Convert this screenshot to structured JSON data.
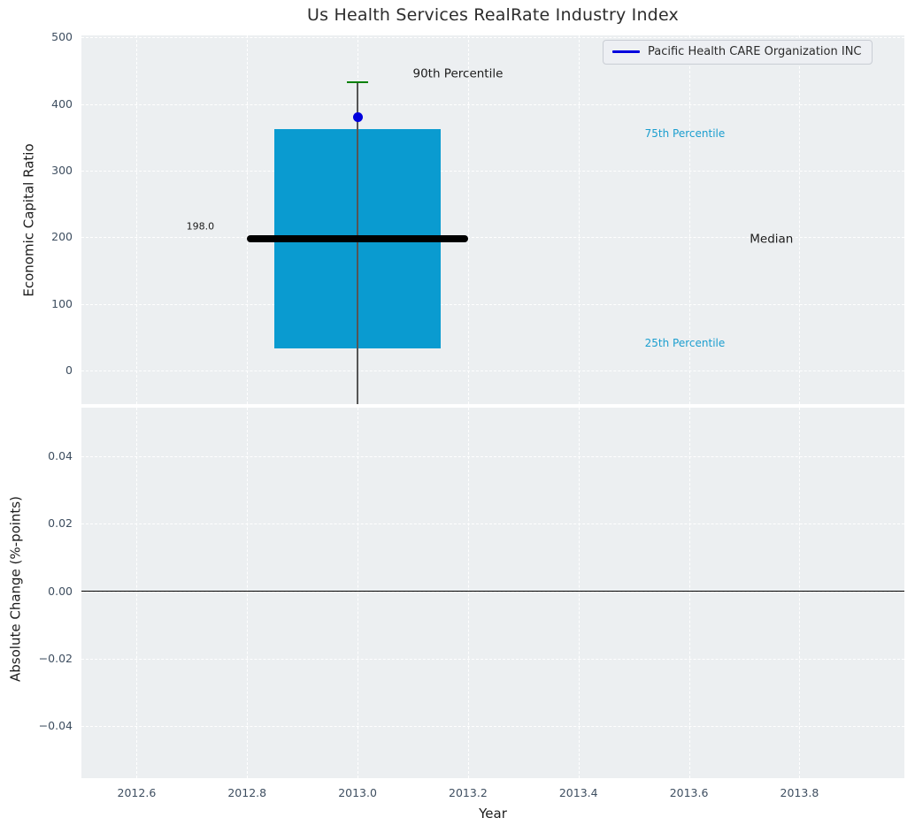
{
  "figure": {
    "title": "Us Health Services RealRate Industry Index"
  },
  "legend": {
    "label": "Pacific Health CARE Organization INC",
    "line_color": "#0000dd"
  },
  "colors": {
    "axes_bg": "#eceff1",
    "grid": "#ffffff",
    "box_fill": "#0a9bd0",
    "median": "#000000",
    "whisker": "#555555",
    "cap_90th": "#008000",
    "point": "#0000dd",
    "tick_label": "#3e4e60",
    "percentile_label": "#1b9ecf",
    "text": "#1c1c1c",
    "zero_line": "#000000",
    "title": "#2d2d2d"
  },
  "chart_data": [
    {
      "type": "boxplot",
      "panel": "top",
      "title": "Us Health Services RealRate Industry Index",
      "ylabel": "Economic Capital Ratio",
      "ylim": [
        -50,
        503
      ],
      "yticks": [
        {
          "v": 0,
          "label": "0"
        },
        {
          "v": 100,
          "label": "100"
        },
        {
          "v": 200,
          "label": "200"
        },
        {
          "v": 300,
          "label": "300"
        },
        {
          "v": 400,
          "label": "400"
        },
        {
          "v": 500,
          "label": "500"
        }
      ],
      "xlim": [
        2012.5,
        2013.99
      ],
      "xticks": [
        {
          "v": 2012.6,
          "label": "2012.6"
        },
        {
          "v": 2012.8,
          "label": "2012.8"
        },
        {
          "v": 2013.0,
          "label": "2013.0"
        },
        {
          "v": 2013.2,
          "label": "2013.2"
        },
        {
          "v": 2013.4,
          "label": "2013.4"
        },
        {
          "v": 2013.6,
          "label": "2013.6"
        },
        {
          "v": 2013.8,
          "label": "2013.8"
        }
      ],
      "grid": true,
      "legend_position": "upper right",
      "box": {
        "x": 2013.0,
        "box_width": 0.3,
        "median_line_width": 0.4,
        "p25": 33,
        "median": 198,
        "median_label": "198.0",
        "p75": 363,
        "p90": 433,
        "whisker_low": -50
      },
      "point": {
        "series": "Pacific Health CARE Organization INC",
        "x": 2013.0,
        "y": 380
      },
      "annotations": [
        {
          "text": "90th Percentile",
          "x": 2013.1,
          "y": 445,
          "color": "text",
          "size": 13.5
        },
        {
          "text": "75th Percentile",
          "x": 2013.52,
          "y": 356,
          "color": "percentile_label",
          "size": 12
        },
        {
          "text": "Median",
          "x": 2013.71,
          "y": 197,
          "color": "text",
          "size": 13.5
        },
        {
          "text": "25th Percentile",
          "x": 2013.52,
          "y": 42,
          "color": "percentile_label",
          "size": 12
        },
        {
          "text": "198.0",
          "x": 2012.69,
          "y": 217,
          "color": "text",
          "size": 11
        }
      ]
    },
    {
      "type": "line",
      "panel": "bottom",
      "ylabel": "Absolute Change (%-points)",
      "xlabel": "Year",
      "ylim": [
        -0.0555,
        0.0545
      ],
      "yticks": [
        {
          "v": 0.04,
          "label": "0.04"
        },
        {
          "v": 0.02,
          "label": "0.02"
        },
        {
          "v": 0.0,
          "label": "0.00"
        },
        {
          "v": -0.02,
          "label": "−0.02"
        },
        {
          "v": -0.04,
          "label": "−0.04"
        }
      ],
      "grid": true,
      "zero_line": {
        "y": 0.0
      },
      "series": []
    }
  ]
}
